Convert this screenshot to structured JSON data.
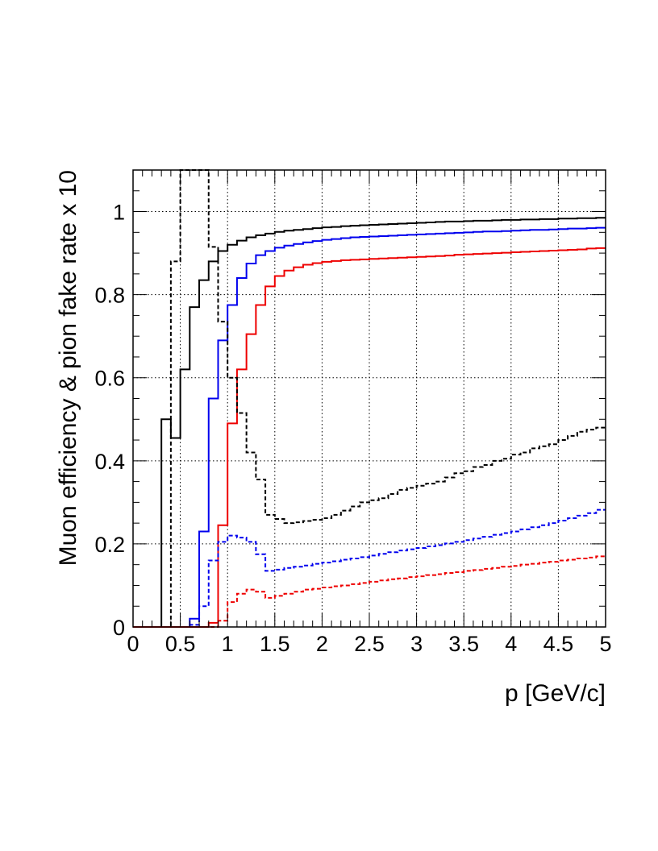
{
  "chart_data": {
    "type": "line",
    "title": "",
    "xlabel": "p [GeV/c]",
    "ylabel": "Muon efficiency & pion fake rate x 10",
    "xlim": [
      0,
      5
    ],
    "ylim": [
      0,
      1.1
    ],
    "grid": true,
    "step_style": "histogram",
    "x_ticks": [
      0,
      0.5,
      1,
      1.5,
      2,
      2.5,
      3,
      3.5,
      4,
      4.5,
      5
    ],
    "x_tick_labels": [
      "0",
      "0.5",
      "1",
      "1.5",
      "2",
      "2.5",
      "3",
      "3.5",
      "4",
      "4.5",
      "5"
    ],
    "y_ticks": [
      0,
      0.2,
      0.4,
      0.6,
      0.8,
      1
    ],
    "y_tick_labels": [
      "0",
      "0.2",
      "0.4",
      "0.6",
      "0.8",
      "1"
    ],
    "bin_edges": [
      0,
      0.1,
      0.2,
      0.3,
      0.4,
      0.5,
      0.6,
      0.7,
      0.8,
      0.9,
      1.0,
      1.1,
      1.2,
      1.3,
      1.4,
      1.5,
      1.6,
      1.7,
      1.8,
      1.9,
      2.0,
      2.1,
      2.2,
      2.3,
      2.4,
      2.5,
      2.6,
      2.7,
      2.8,
      2.9,
      3.0,
      3.1,
      3.2,
      3.3,
      3.4,
      3.5,
      3.6,
      3.7,
      3.8,
      3.9,
      4.0,
      4.1,
      4.2,
      4.3,
      4.4,
      4.5,
      4.6,
      4.7,
      4.8,
      4.9,
      5.0
    ],
    "series": [
      {
        "color": "#000000",
        "dash": "solid",
        "values": [
          0,
          0,
          0,
          0.5,
          0.455,
          0.62,
          0.77,
          0.835,
          0.88,
          0.905,
          0.92,
          0.93,
          0.938,
          0.943,
          0.947,
          0.951,
          0.954,
          0.956,
          0.958,
          0.96,
          0.962,
          0.963,
          0.965,
          0.966,
          0.967,
          0.968,
          0.969,
          0.97,
          0.971,
          0.972,
          0.973,
          0.974,
          0.975,
          0.976,
          0.976,
          0.977,
          0.978,
          0.978,
          0.979,
          0.98,
          0.98,
          0.981,
          0.981,
          0.982,
          0.982,
          0.983,
          0.983,
          0.984,
          0.984,
          0.985
        ]
      },
      {
        "color": "#0000ee",
        "dash": "solid",
        "values": [
          0,
          0,
          0,
          0,
          0,
          0,
          0.02,
          0.23,
          0.55,
          0.69,
          0.775,
          0.84,
          0.875,
          0.895,
          0.905,
          0.913,
          0.918,
          0.922,
          0.926,
          0.929,
          0.932,
          0.934,
          0.936,
          0.938,
          0.939,
          0.94,
          0.941,
          0.942,
          0.943,
          0.944,
          0.945,
          0.946,
          0.947,
          0.948,
          0.949,
          0.95,
          0.951,
          0.952,
          0.952,
          0.953,
          0.954,
          0.955,
          0.956,
          0.956,
          0.957,
          0.958,
          0.959,
          0.959,
          0.96,
          0.961
        ]
      },
      {
        "color": "#ee0000",
        "dash": "solid",
        "values": [
          0,
          0,
          0,
          0,
          0,
          0,
          0,
          0,
          0.01,
          0.245,
          0.49,
          0.62,
          0.705,
          0.775,
          0.82,
          0.845,
          0.858,
          0.866,
          0.872,
          0.876,
          0.879,
          0.881,
          0.883,
          0.884,
          0.885,
          0.886,
          0.887,
          0.888,
          0.889,
          0.89,
          0.891,
          0.892,
          0.893,
          0.894,
          0.896,
          0.897,
          0.898,
          0.899,
          0.9,
          0.901,
          0.902,
          0.903,
          0.904,
          0.905,
          0.906,
          0.907,
          0.908,
          0.909,
          0.911,
          0.912
        ]
      },
      {
        "color": "#000000",
        "dash": "dashed",
        "values": [
          0,
          0,
          0,
          0,
          0.88,
          1.1,
          1.1,
          1.1,
          0.915,
          0.735,
          0.6,
          0.515,
          0.42,
          0.355,
          0.27,
          0.26,
          0.25,
          0.252,
          0.255,
          0.258,
          0.262,
          0.27,
          0.28,
          0.29,
          0.3,
          0.305,
          0.31,
          0.32,
          0.33,
          0.335,
          0.34,
          0.345,
          0.35,
          0.36,
          0.37,
          0.375,
          0.385,
          0.39,
          0.4,
          0.405,
          0.415,
          0.42,
          0.43,
          0.435,
          0.44,
          0.45,
          0.46,
          0.47,
          0.475,
          0.48
        ]
      },
      {
        "color": "#0000ee",
        "dash": "dashed",
        "values": [
          0,
          0,
          0,
          0,
          0,
          0,
          0.005,
          0.05,
          0.16,
          0.205,
          0.22,
          0.215,
          0.205,
          0.175,
          0.135,
          0.138,
          0.142,
          0.145,
          0.148,
          0.152,
          0.155,
          0.158,
          0.162,
          0.165,
          0.168,
          0.172,
          0.176,
          0.18,
          0.184,
          0.187,
          0.19,
          0.194,
          0.197,
          0.201,
          0.205,
          0.209,
          0.213,
          0.217,
          0.222,
          0.226,
          0.23,
          0.235,
          0.24,
          0.245,
          0.25,
          0.256,
          0.262,
          0.268,
          0.274,
          0.282
        ]
      },
      {
        "color": "#ee0000",
        "dash": "dashed",
        "values": [
          0,
          0,
          0,
          0,
          0,
          0,
          0,
          0,
          0,
          0.015,
          0.06,
          0.08,
          0.09,
          0.085,
          0.07,
          0.075,
          0.08,
          0.085,
          0.09,
          0.092,
          0.095,
          0.098,
          0.1,
          0.103,
          0.106,
          0.109,
          0.112,
          0.115,
          0.117,
          0.12,
          0.122,
          0.125,
          0.127,
          0.13,
          0.132,
          0.135,
          0.137,
          0.14,
          0.142,
          0.145,
          0.147,
          0.15,
          0.152,
          0.155,
          0.157,
          0.16,
          0.162,
          0.165,
          0.167,
          0.17
        ]
      }
    ]
  }
}
